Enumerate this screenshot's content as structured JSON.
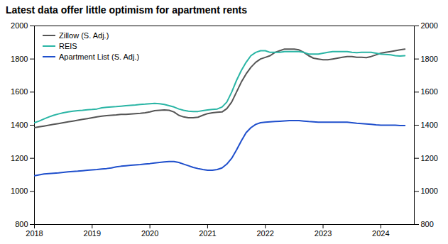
{
  "chart_data": {
    "type": "line",
    "title": "Latest data offer little optimism for apartment rents",
    "x": [
      2018.0,
      2018.083,
      2018.167,
      2018.25,
      2018.333,
      2018.417,
      2018.5,
      2018.583,
      2018.667,
      2018.75,
      2018.833,
      2018.917,
      2019.0,
      2019.083,
      2019.167,
      2019.25,
      2019.333,
      2019.417,
      2019.5,
      2019.583,
      2019.667,
      2019.75,
      2019.833,
      2019.917,
      2020.0,
      2020.083,
      2020.167,
      2020.25,
      2020.333,
      2020.417,
      2020.5,
      2020.583,
      2020.667,
      2020.75,
      2020.833,
      2020.917,
      2021.0,
      2021.083,
      2021.167,
      2021.25,
      2021.333,
      2021.417,
      2021.5,
      2021.583,
      2021.667,
      2021.75,
      2021.833,
      2021.917,
      2022.0,
      2022.083,
      2022.167,
      2022.25,
      2022.333,
      2022.417,
      2022.5,
      2022.583,
      2022.667,
      2022.75,
      2022.833,
      2022.917,
      2023.0,
      2023.083,
      2023.167,
      2023.25,
      2023.333,
      2023.417,
      2023.5,
      2023.583,
      2023.667,
      2023.75,
      2023.833,
      2023.917,
      2024.0,
      2024.083,
      2024.167,
      2024.25,
      2024.333,
      2024.417
    ],
    "series": [
      {
        "name": "Zillow (S. Adj.)",
        "color": "#555555",
        "values": [
          1385,
          1390,
          1395,
          1400,
          1405,
          1410,
          1415,
          1420,
          1425,
          1430,
          1435,
          1440,
          1445,
          1450,
          1455,
          1458,
          1460,
          1462,
          1465,
          1465,
          1468,
          1470,
          1472,
          1475,
          1480,
          1488,
          1490,
          1492,
          1490,
          1480,
          1460,
          1450,
          1445,
          1445,
          1448,
          1460,
          1470,
          1475,
          1478,
          1480,
          1500,
          1540,
          1600,
          1660,
          1710,
          1750,
          1780,
          1800,
          1810,
          1820,
          1840,
          1850,
          1860,
          1860,
          1860,
          1855,
          1840,
          1820,
          1805,
          1800,
          1795,
          1795,
          1800,
          1805,
          1810,
          1815,
          1815,
          1810,
          1810,
          1808,
          1815,
          1825,
          1835,
          1840,
          1845,
          1850,
          1855,
          1860
        ]
      },
      {
        "name": "REIS",
        "color": "#2ab5a5",
        "values": [
          1415,
          1425,
          1438,
          1450,
          1460,
          1468,
          1475,
          1480,
          1485,
          1488,
          1490,
          1493,
          1495,
          1498,
          1505,
          1508,
          1510,
          1512,
          1515,
          1518,
          1520,
          1522,
          1525,
          1527,
          1530,
          1532,
          1530,
          1525,
          1518,
          1510,
          1498,
          1490,
          1485,
          1483,
          1483,
          1488,
          1492,
          1495,
          1498,
          1510,
          1540,
          1600,
          1670,
          1730,
          1780,
          1820,
          1840,
          1850,
          1850,
          1840,
          1840,
          1840,
          1845,
          1845,
          1845,
          1845,
          1840,
          1830,
          1830,
          1830,
          1835,
          1840,
          1845,
          1845,
          1845,
          1845,
          1840,
          1838,
          1840,
          1840,
          1840,
          1835,
          1830,
          1828,
          1825,
          1820,
          1818,
          1820
        ]
      },
      {
        "name": "Apartment List (S. Adj.)",
        "color": "#1f4fcc",
        "values": [
          1095,
          1100,
          1105,
          1108,
          1110,
          1112,
          1115,
          1118,
          1120,
          1122,
          1125,
          1128,
          1130,
          1132,
          1135,
          1138,
          1142,
          1148,
          1152,
          1155,
          1158,
          1160,
          1162,
          1165,
          1168,
          1172,
          1175,
          1178,
          1180,
          1180,
          1175,
          1165,
          1155,
          1145,
          1138,
          1132,
          1128,
          1128,
          1132,
          1142,
          1165,
          1200,
          1250,
          1305,
          1355,
          1385,
          1405,
          1415,
          1418,
          1420,
          1422,
          1424,
          1426,
          1428,
          1428,
          1428,
          1425,
          1422,
          1420,
          1418,
          1418,
          1418,
          1418,
          1418,
          1418,
          1418,
          1415,
          1412,
          1410,
          1408,
          1405,
          1402,
          1400,
          1400,
          1400,
          1400,
          1398,
          1398
        ]
      }
    ],
    "xlim": [
      2018.0,
      2024.58
    ],
    "xticks": [
      2018,
      2019,
      2020,
      2021,
      2022,
      2023,
      2024
    ],
    "ylim": [
      800,
      2000
    ],
    "yticks": [
      800,
      1000,
      1200,
      1400,
      1600,
      1800,
      2000
    ],
    "y2lim": [
      800,
      2000
    ],
    "y2ticks": [
      800,
      1000,
      1200,
      1400,
      1600,
      1800,
      2000
    ],
    "grid": false,
    "legend": "upper left"
  }
}
